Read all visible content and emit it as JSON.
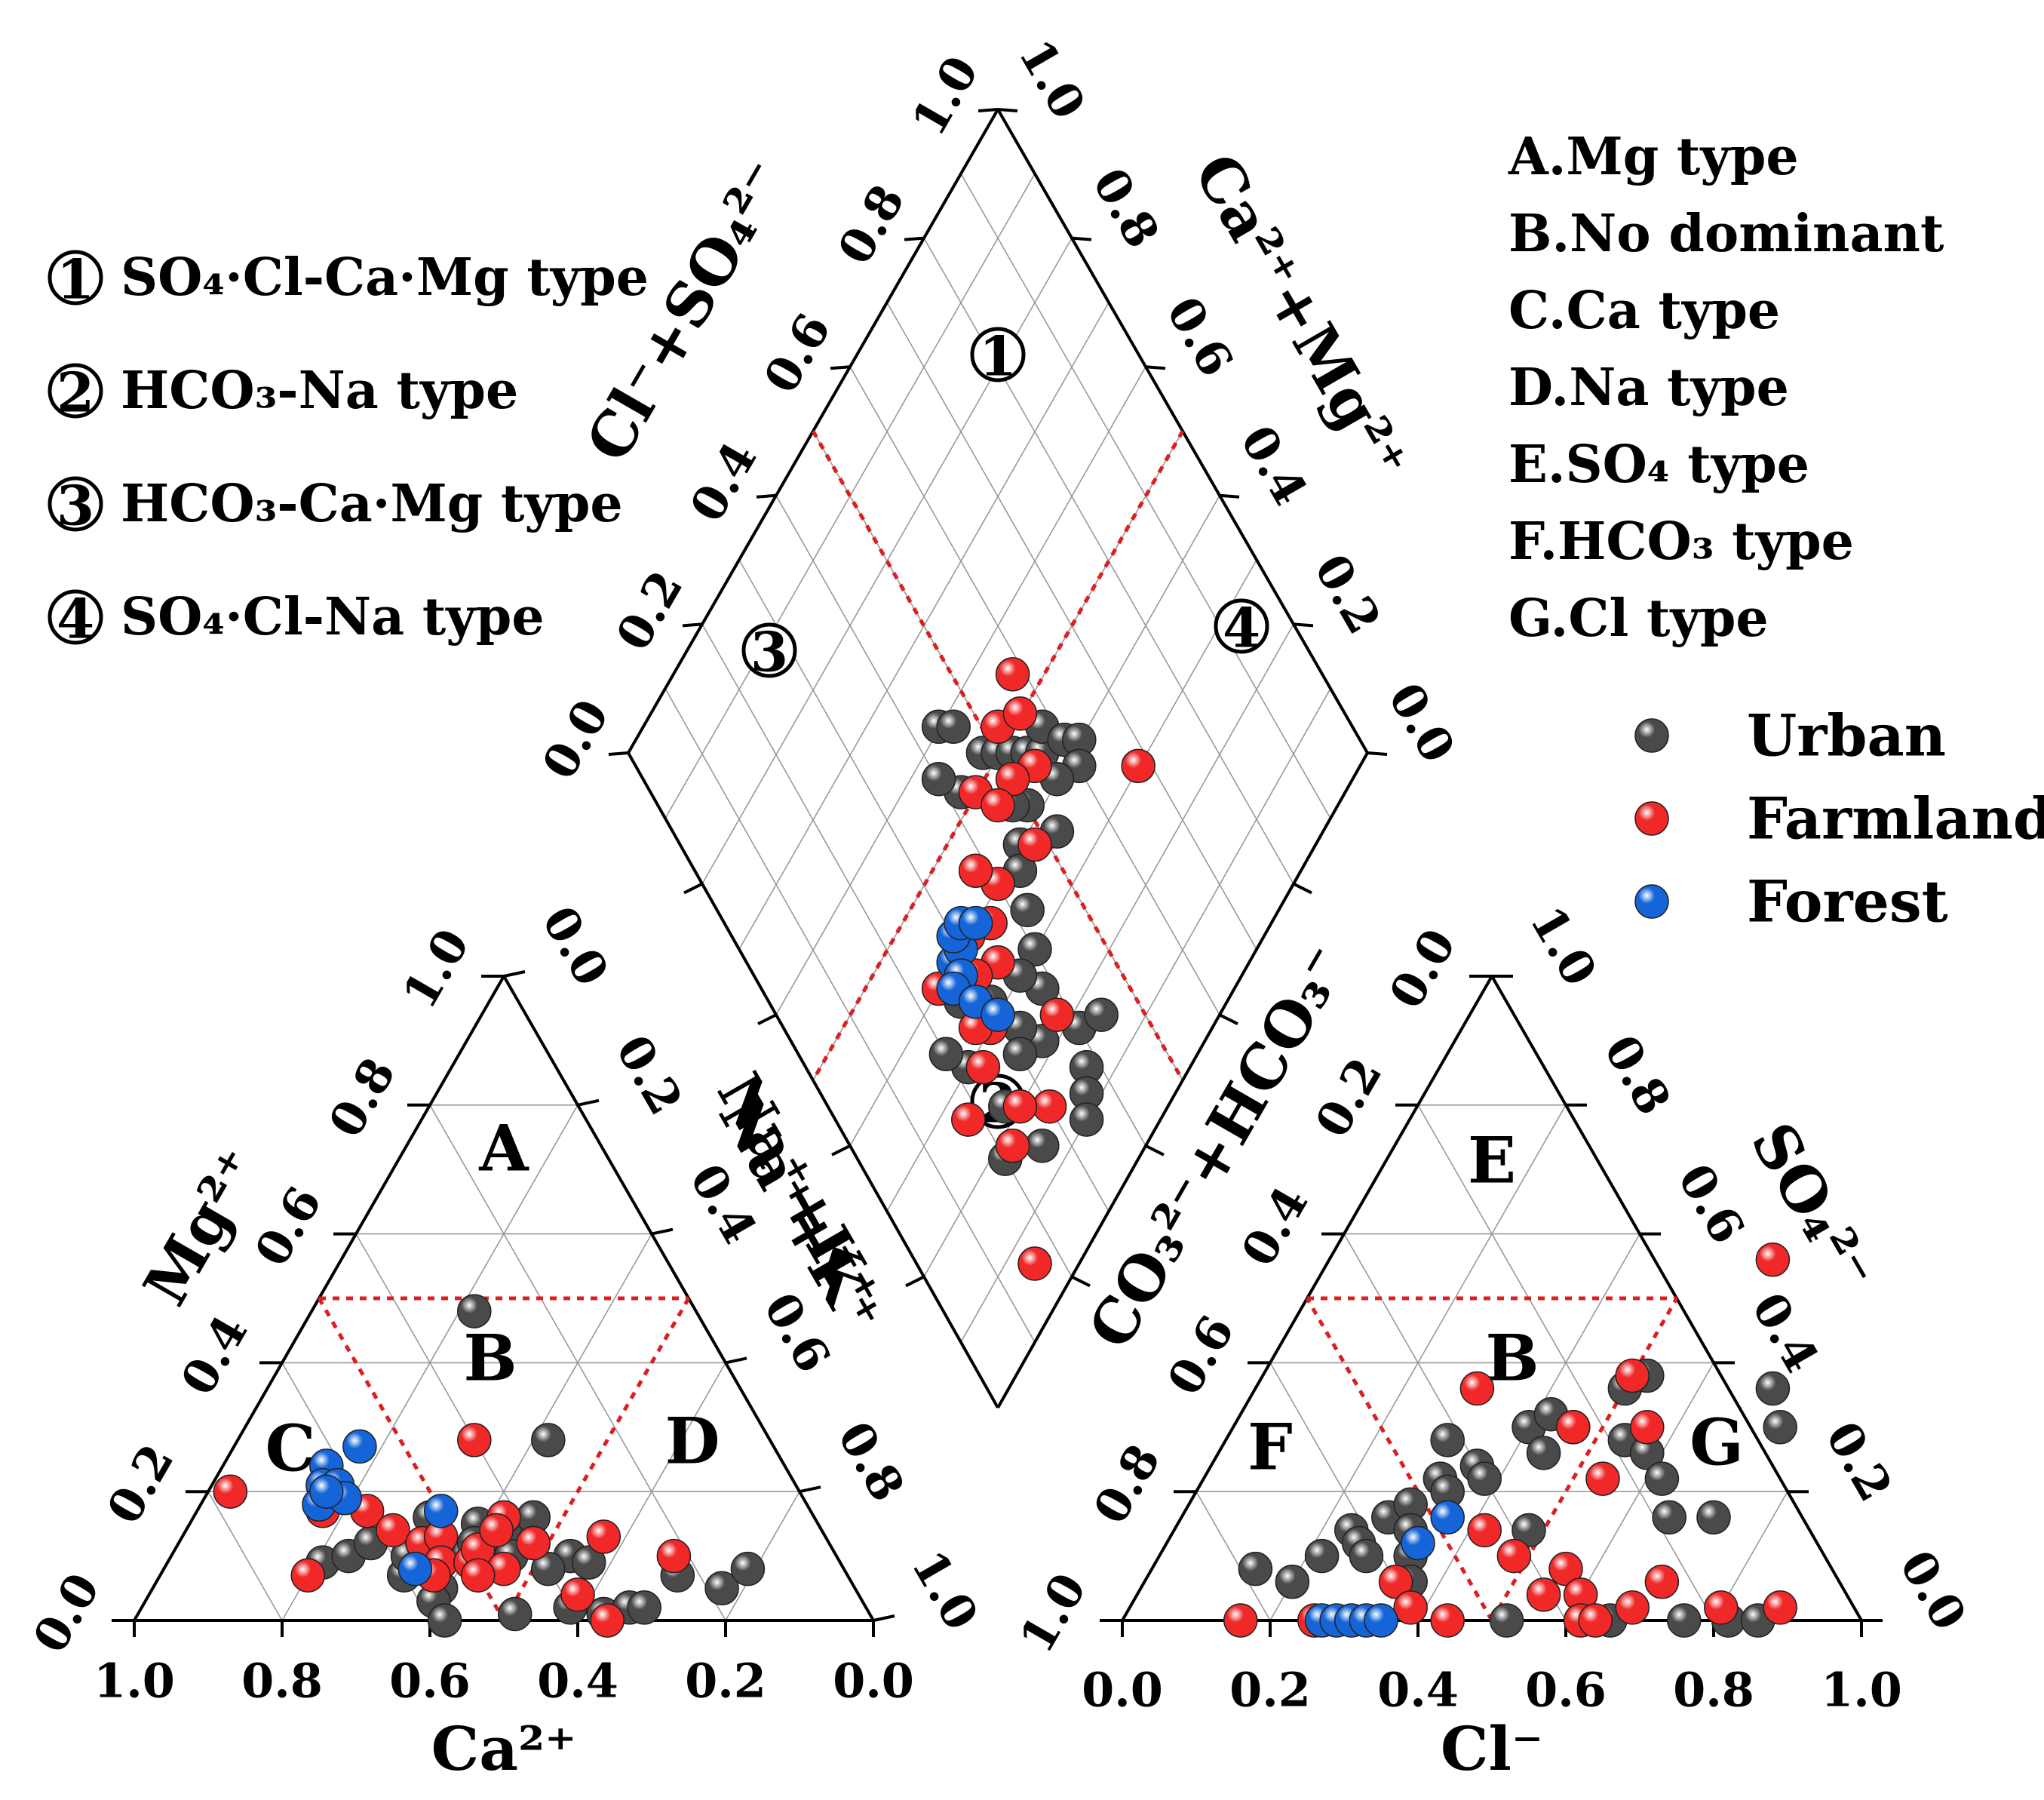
{
  "chart_data": {
    "type": "scatter",
    "subtype": "piper-diagram",
    "series": [
      {
        "name": "Urban",
        "color": "#4a4a4a"
      },
      {
        "name": "Farmland",
        "color": "#f02828"
      },
      {
        "name": "Forest",
        "color": "#1565d8"
      }
    ],
    "cation_triangle": {
      "axes": {
        "bottom": "Ca²⁺",
        "left": "Mg²⁺",
        "right": "Na⁺+K⁺"
      },
      "ca_ticks": [
        "1.0",
        "0.8",
        "0.6",
        "0.4",
        "0.2",
        "0.0"
      ],
      "mg_ticks": [
        "0.0",
        "0.2",
        "0.4",
        "0.6",
        "0.8",
        "1.0"
      ],
      "nak_ticks": [
        "0.0",
        "0.2",
        "0.4",
        "0.6",
        "0.8",
        "1.0"
      ],
      "regions": [
        "A",
        "B",
        "C",
        "D"
      ],
      "points": {
        "Urban": [
          [
            0.7,
            0.09
          ],
          [
            0.66,
            0.1
          ],
          [
            0.6,
            0.07
          ],
          [
            0.56,
            0.05
          ],
          [
            0.62,
            0.12
          ],
          [
            0.58,
            0.1
          ],
          [
            0.58,
            0.03
          ],
          [
            0.52,
            0.16
          ],
          [
            0.5,
            0.1
          ],
          [
            0.45,
            0.13
          ],
          [
            0.42,
            0.14
          ],
          [
            0.38,
            0.16
          ],
          [
            0.4,
            0.12
          ],
          [
            0.36,
            0.1
          ],
          [
            0.4,
            0.08
          ],
          [
            0.34,
            0.09
          ],
          [
            0.3,
            0.28
          ],
          [
            0.48,
            0.01
          ],
          [
            0.4,
            0.02
          ],
          [
            0.36,
            0.01
          ],
          [
            0.32,
            0.02
          ],
          [
            0.3,
            0.02
          ],
          [
            0.23,
            0.07
          ],
          [
            0.18,
            0.05
          ],
          [
            0.13,
            0.08
          ],
          [
            0.3,
            0.48
          ],
          [
            0.58,
            0.0
          ],
          [
            0.46,
            0.15
          ],
          [
            0.48,
            0.12
          ],
          [
            0.44,
            0.1
          ]
        ],
        "Farmland": [
          [
            0.77,
            0.2
          ],
          [
            0.73,
            0.07
          ],
          [
            0.66,
            0.17
          ],
          [
            0.6,
            0.17
          ],
          [
            0.58,
            0.14
          ],
          [
            0.55,
            0.12
          ],
          [
            0.52,
            0.13
          ],
          [
            0.54,
            0.09
          ],
          [
            0.5,
            0.09
          ],
          [
            0.48,
            0.11
          ],
          [
            0.46,
            0.08
          ],
          [
            0.42,
            0.16
          ],
          [
            0.4,
            0.12
          ],
          [
            0.4,
            0.28
          ],
          [
            0.38,
            0.04
          ],
          [
            0.36,
            0.0
          ],
          [
            0.3,
            0.13
          ],
          [
            0.22,
            0.1
          ],
          [
            0.56,
            0.07
          ],
          [
            0.5,
            0.07
          ],
          [
            0.44,
            0.14
          ]
        ],
        "Forest": [
          [
            0.62,
            0.24
          ],
          [
            0.64,
            0.21
          ],
          [
            0.62,
            0.21
          ],
          [
            0.66,
            0.18
          ],
          [
            0.62,
            0.19
          ],
          [
            0.56,
            0.27
          ],
          [
            0.5,
            0.17
          ],
          [
            0.58,
            0.08
          ],
          [
            0.64,
            0.2
          ]
        ]
      }
    },
    "anion_triangle": {
      "axes": {
        "bottom": "Cl⁻",
        "left": "CO₃²⁻+HCO₃⁻",
        "right": "SO₄²⁻"
      },
      "cl_ticks": [
        "0.0",
        "0.2",
        "0.4",
        "0.6",
        "0.8",
        "1.0"
      ],
      "hco3_ticks": [
        "1.0",
        "0.8",
        "0.6",
        "0.4",
        "0.2",
        "0.0"
      ],
      "so4_ticks": [
        "1.0",
        "0.8",
        "0.6",
        "0.4",
        "0.2",
        "0.0"
      ],
      "regions": [
        "E",
        "B",
        "F",
        "G"
      ],
      "points": {
        "Urban": [
          [
            0.14,
            0.08
          ],
          [
            0.2,
            0.06
          ],
          [
            0.22,
            0.1
          ],
          [
            0.24,
            0.14
          ],
          [
            0.26,
            0.12
          ],
          [
            0.28,
            0.16
          ],
          [
            0.3,
            0.18
          ],
          [
            0.32,
            0.22
          ],
          [
            0.34,
            0.2
          ],
          [
            0.36,
            0.24
          ],
          [
            0.3,
            0.28
          ],
          [
            0.32,
            0.14
          ],
          [
            0.28,
            0.1
          ],
          [
            0.34,
            0.1
          ],
          [
            0.36,
            0.06
          ],
          [
            0.38,
            0.22
          ],
          [
            0.4,
            0.3
          ],
          [
            0.42,
            0.32
          ],
          [
            0.44,
            0.26
          ],
          [
            0.46,
            0.3
          ],
          [
            0.48,
            0.14
          ],
          [
            0.5,
            0.36
          ],
          [
            0.52,
            0.38
          ],
          [
            0.54,
            0.28
          ],
          [
            0.58,
            0.26
          ],
          [
            0.62,
            0.22
          ],
          [
            0.66,
            0.16
          ],
          [
            0.7,
            0.36
          ],
          [
            0.74,
            0.3
          ],
          [
            0.72,
            0.16
          ],
          [
            0.52,
            0.0
          ],
          [
            0.66,
            0.0
          ],
          [
            0.76,
            0.0
          ],
          [
            0.82,
            0.0
          ],
          [
            0.86,
            0.0
          ]
        ],
        "Farmland": [
          [
            0.16,
            0.0
          ],
          [
            0.26,
            0.0
          ],
          [
            0.44,
            0.0
          ],
          [
            0.3,
            0.36
          ],
          [
            0.34,
            0.06
          ],
          [
            0.38,
            0.02
          ],
          [
            0.42,
            0.14
          ],
          [
            0.46,
            0.3
          ],
          [
            0.5,
            0.38
          ],
          [
            0.54,
            0.22
          ],
          [
            0.56,
            0.3
          ],
          [
            0.56,
            0.08
          ],
          [
            0.55,
            0.04
          ],
          [
            0.6,
            0.04
          ],
          [
            0.62,
            0.0
          ],
          [
            0.64,
            0.0
          ],
          [
            0.68,
            0.02
          ],
          [
            0.7,
            0.06
          ],
          [
            0.8,
            0.02
          ],
          [
            0.88,
            0.02
          ],
          [
            0.6,
            0.56
          ],
          [
            0.48,
            0.1
          ]
        ],
        "Forest": [
          [
            0.27,
            0.0
          ],
          [
            0.29,
            0.0
          ],
          [
            0.31,
            0.0
          ],
          [
            0.33,
            0.0
          ],
          [
            0.35,
            0.0
          ],
          [
            0.36,
            0.16
          ],
          [
            0.34,
            0.12
          ]
        ]
      }
    },
    "diamond": {
      "axes": {
        "upper_left": "Cl⁻+SO₄²⁻",
        "upper_right": "Ca²⁺+Mg²⁺",
        "lower_right": "Na⁺+K⁺"
      },
      "left_ticks": [
        "0.0",
        "0.2",
        "0.4",
        "0.6",
        "0.8",
        "1.0"
      ],
      "right_ticks": [
        "1.0",
        "0.8",
        "0.6",
        "0.4",
        "0.2",
        "0.0"
      ],
      "regions": [
        "①",
        "②",
        "③",
        "④"
      ],
      "points": {
        "Urban": [
          [
            0.42,
            0.52
          ],
          [
            0.4,
            0.56
          ],
          [
            0.44,
            0.6
          ],
          [
            0.46,
            0.58
          ],
          [
            0.48,
            0.52
          ],
          [
            0.5,
            0.5
          ],
          [
            0.52,
            0.48
          ],
          [
            0.54,
            0.46
          ],
          [
            0.56,
            0.44
          ],
          [
            0.58,
            0.46
          ],
          [
            0.6,
            0.42
          ],
          [
            0.62,
            0.4
          ],
          [
            0.6,
            0.38
          ],
          [
            0.56,
            0.4
          ],
          [
            0.52,
            0.36
          ],
          [
            0.5,
            0.42
          ],
          [
            0.48,
            0.44
          ],
          [
            0.46,
            0.4
          ],
          [
            0.44,
            0.38
          ],
          [
            0.42,
            0.34
          ],
          [
            0.4,
            0.3
          ],
          [
            0.38,
            0.26
          ],
          [
            0.36,
            0.3
          ],
          [
            0.34,
            0.22
          ],
          [
            0.32,
            0.26
          ],
          [
            0.3,
            0.24
          ],
          [
            0.4,
            0.18
          ],
          [
            0.38,
            0.14
          ],
          [
            0.36,
            0.12
          ],
          [
            0.34,
            0.1
          ],
          [
            0.3,
            0.32
          ],
          [
            0.28,
            0.34
          ],
          [
            0.26,
            0.36
          ],
          [
            0.22,
            0.3
          ],
          [
            0.2,
            0.34
          ],
          [
            0.24,
            0.22
          ],
          [
            0.2,
            0.18
          ],
          [
            0.44,
            0.16
          ],
          [
            0.26,
            0.14
          ]
        ],
        "Farmland": [
          [
            0.68,
            0.3
          ],
          [
            0.54,
            0.44
          ],
          [
            0.5,
            0.46
          ],
          [
            0.52,
            0.52
          ],
          [
            0.56,
            0.5
          ],
          [
            0.58,
            0.54
          ],
          [
            0.48,
            0.38
          ],
          [
            0.44,
            0.5
          ],
          [
            0.46,
            0.46
          ],
          [
            0.4,
            0.4
          ],
          [
            0.36,
            0.38
          ],
          [
            0.34,
            0.34
          ],
          [
            0.38,
            0.44
          ],
          [
            0.32,
            0.4
          ],
          [
            0.3,
            0.36
          ],
          [
            0.28,
            0.3
          ],
          [
            0.26,
            0.32
          ],
          [
            0.24,
            0.28
          ],
          [
            0.22,
            0.18
          ],
          [
            0.16,
            0.06
          ],
          [
            0.18,
            0.26
          ],
          [
            0.3,
            0.16
          ],
          [
            0.38,
            0.22
          ],
          [
            0.26,
            0.2
          ],
          [
            0.24,
            0.4
          ]
        ],
        "Forest": [
          [
            0.28,
            0.4
          ],
          [
            0.3,
            0.4
          ],
          [
            0.28,
            0.38
          ],
          [
            0.3,
            0.42
          ],
          [
            0.32,
            0.42
          ],
          [
            0.34,
            0.4
          ],
          [
            0.26,
            0.38
          ],
          [
            0.28,
            0.34
          ],
          [
            0.3,
            0.3
          ]
        ]
      }
    },
    "type_legend_numbered": [
      {
        "mark": "①",
        "text": "SO₄·Cl-Ca·Mg type"
      },
      {
        "mark": "②",
        "text": "HCO₃-Na type"
      },
      {
        "mark": "③",
        "text": "HCO₃-Ca·Mg type"
      },
      {
        "mark": "④",
        "text": "SO₄·Cl-Na type"
      }
    ],
    "type_legend_lettered": [
      "A.Mg type",
      "B.No dominant",
      "C.Ca type",
      "D.Na type",
      "E.SO₄ type",
      "F.HCO₃ type",
      "G.Cl type"
    ]
  }
}
